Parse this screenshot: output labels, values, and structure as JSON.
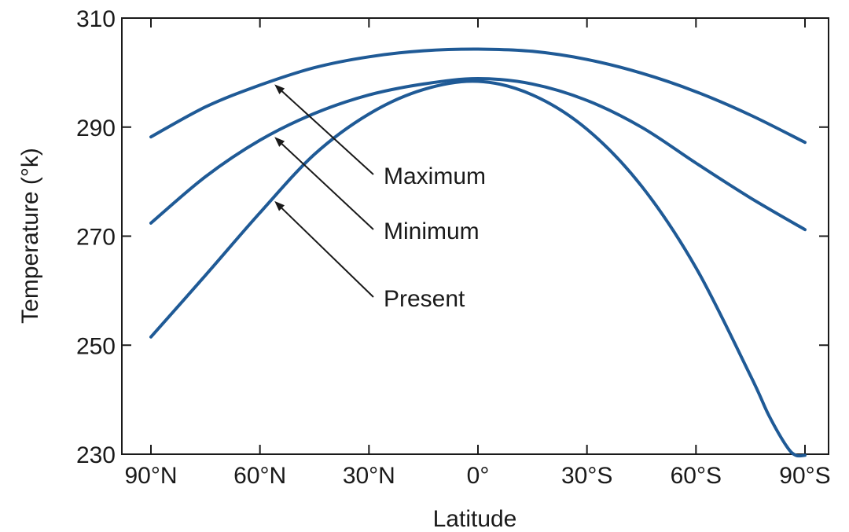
{
  "chart_data": {
    "type": "line",
    "title": "",
    "xlabel": "Latitude",
    "ylabel": "Temperature (°k)",
    "xlim": [
      -90,
      90
    ],
    "ylim": [
      230,
      310
    ],
    "xticks": [
      {
        "value": -90,
        "label": "90°N"
      },
      {
        "value": -60,
        "label": "60°N"
      },
      {
        "value": -30,
        "label": "30°N"
      },
      {
        "value": 0,
        "label": "0°"
      },
      {
        "value": 30,
        "label": "30°S"
      },
      {
        "value": 60,
        "label": "60°S"
      },
      {
        "value": 90,
        "label": "90°S"
      }
    ],
    "yticks": [
      230,
      250,
      270,
      290,
      310
    ],
    "line_color": "#1f5a96",
    "grid": false,
    "legend": "none",
    "series": [
      {
        "name": "Maximum",
        "x": [
          -90,
          -75,
          -60,
          -45,
          -30,
          -15,
          0,
          15,
          30,
          45,
          60,
          75,
          90
        ],
        "y": [
          288.2,
          293.7,
          297.7,
          300.9,
          302.9,
          304.0,
          304.3,
          303.9,
          302.4,
          299.9,
          296.5,
          292.2,
          287.2
        ]
      },
      {
        "name": "Minimum",
        "x": [
          -90,
          -75,
          -60,
          -45,
          -30,
          -15,
          0,
          15,
          30,
          45,
          60,
          75,
          90
        ],
        "y": [
          272.4,
          280.9,
          287.6,
          292.5,
          295.9,
          297.9,
          298.9,
          297.9,
          294.9,
          290.0,
          283.4,
          277.0,
          271.2
        ]
      },
      {
        "name": "Present",
        "x": [
          -90,
          -75,
          -60,
          -45,
          -30,
          -15,
          0,
          15,
          30,
          45,
          60,
          75,
          80,
          85,
          87.5,
          90
        ],
        "y": [
          251.5,
          262.8,
          274.3,
          285.0,
          292.4,
          296.9,
          298.4,
          295.9,
          289.6,
          279.2,
          264.2,
          244.4,
          237.2,
          231.4,
          229.8,
          229.8
        ]
      }
    ],
    "annotations": [
      {
        "label": "Maximum",
        "series": "Maximum",
        "arrow_x": -56
      },
      {
        "label": "Minimum",
        "series": "Minimum",
        "arrow_x": -56
      },
      {
        "label": "Present",
        "series": "Present",
        "arrow_x": -56
      }
    ]
  }
}
